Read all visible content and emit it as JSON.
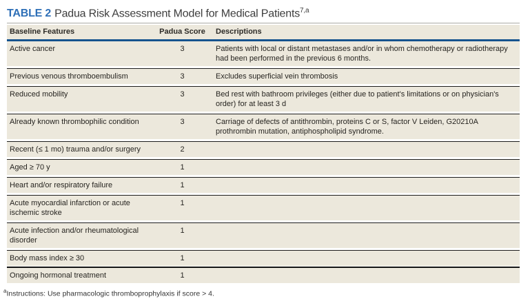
{
  "title": {
    "tag": "TABLE 2",
    "text": "Padua Risk Assessment Model for Medical Patients",
    "superscript": "7,a"
  },
  "table": {
    "columns": [
      "Baseline Features",
      "Padua Score",
      "Descriptions"
    ],
    "rows": [
      {
        "feature": "Active cancer",
        "score": "3",
        "description": "Patients with local or distant metastases and/or in whom chemotherapy or radiotherapy had been performed in the previous 6 months."
      },
      {
        "feature": "Previous venous thromboembulism",
        "score": "3",
        "description": "Excludes superficial vein thrombosis"
      },
      {
        "feature": "Reduced mobility",
        "score": "3",
        "description": "Bed rest with bathroom privileges (either due to patient's limitations or on physician's order) for at least 3 d"
      },
      {
        "feature": "Already known thrombophilic condition",
        "score": "3",
        "description": "Carriage of defects of antithrombin, proteins C or S, factor V Leiden, G20210A prothrombin mutation, antiphospholipid syndrome."
      },
      {
        "feature": "Recent (≤ 1 mo) trauma and/or surgery",
        "score": "2",
        "description": ""
      },
      {
        "feature": "Aged ≥ 70 y",
        "score": "1",
        "description": ""
      },
      {
        "feature": "Heart and/or respiratory failure",
        "score": "1",
        "description": ""
      },
      {
        "feature": "Acute myocardial infarction or acute ischemic stroke",
        "score": "1",
        "description": ""
      },
      {
        "feature": "Acute infection and/or rheumatological disorder",
        "score": "1",
        "description": ""
      },
      {
        "feature": "Body mass index ≥ 30",
        "score": "1",
        "description": ""
      },
      {
        "feature": "Ongoing hormonal treatment",
        "score": "1",
        "description": ""
      }
    ]
  },
  "footnote": {
    "marker": "a",
    "text": "Instructions: Use pharmacologic thromboprophylaxis if score > 4."
  },
  "colors": {
    "accent_blue_rule": "#15538e",
    "title_tag_blue": "#2e6fb7",
    "row_background": "#ece8dc",
    "separator_black": "#1c1c1c",
    "top_rule_gray": "#a9a9a4"
  }
}
